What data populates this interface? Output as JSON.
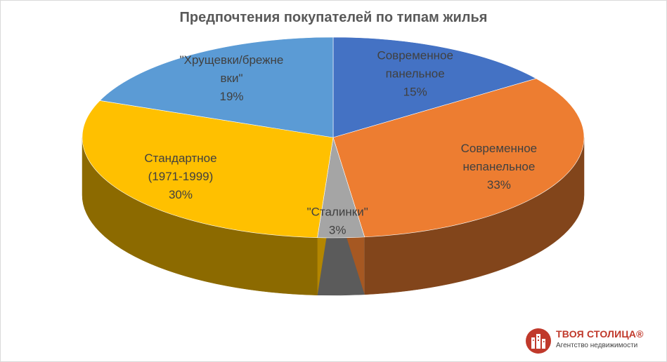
{
  "chart_data": {
    "type": "pie",
    "style": "3d",
    "title": "Предпочтения покупателей по типам жилья",
    "slices": [
      {
        "label_lines": [
          "Современное",
          "панельное"
        ],
        "percent_label": "15%",
        "value": 15,
        "color": "#4472c4"
      },
      {
        "label_lines": [
          "Современное",
          "непанельное"
        ],
        "percent_label": "33%",
        "value": 33,
        "color": "#ed7d31"
      },
      {
        "label_lines": [
          "\"Сталинки\""
        ],
        "percent_label": "3%",
        "value": 3,
        "color": "#a5a5a5"
      },
      {
        "label_lines": [
          "Стандартное",
          "(1971-1999)"
        ],
        "percent_label": "30%",
        "value": 30,
        "color": "#ffc000"
      },
      {
        "label_lines": [
          "\"Хрущевки/брежне",
          "вки\""
        ],
        "percent_label": "19%",
        "value": 19,
        "color": "#5b9bd5"
      }
    ],
    "legend": "none"
  },
  "brand": {
    "name": "ТВОЯ СТОЛИЦА®",
    "tagline": "Агентство недвижимости",
    "color": "#c0392b"
  }
}
